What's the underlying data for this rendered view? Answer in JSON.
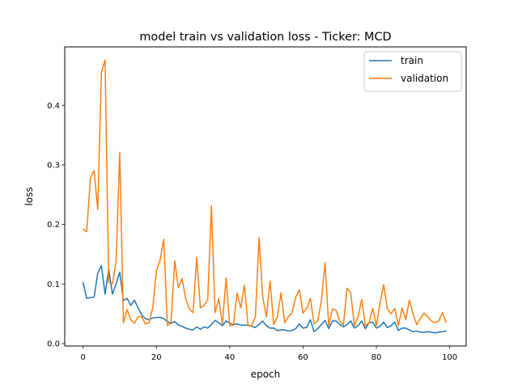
{
  "chart_data": {
    "type": "line",
    "title": "model train vs validation loss - Ticker: MCD",
    "xlabel": "epoch",
    "ylabel": "loss",
    "xlim": [
      -5,
      104.5
    ],
    "ylim": [
      -0.004,
      0.498
    ],
    "xticks": [
      0,
      20,
      40,
      60,
      80,
      100
    ],
    "yticks": [
      0.0,
      0.1,
      0.2,
      0.3,
      0.4
    ],
    "xtick_labels": [
      "0",
      "20",
      "40",
      "60",
      "80",
      "100"
    ],
    "ytick_labels": [
      "0.0",
      "0.1",
      "0.2",
      "0.3",
      "0.4"
    ],
    "grid": false,
    "legend_position": "top-right",
    "series": [
      {
        "name": "train",
        "color": "#1f77b4",
        "x": [
          0,
          1,
          2,
          3,
          4,
          5,
          6,
          7,
          8,
          9,
          10,
          11,
          12,
          13,
          14,
          15,
          16,
          17,
          18,
          19,
          20,
          21,
          22,
          23,
          24,
          25,
          26,
          27,
          28,
          29,
          30,
          31,
          32,
          33,
          34,
          35,
          36,
          37,
          38,
          39,
          40,
          41,
          42,
          43,
          44,
          45,
          46,
          47,
          48,
          49,
          50,
          51,
          52,
          53,
          54,
          55,
          56,
          57,
          58,
          59,
          60,
          61,
          62,
          63,
          64,
          65,
          66,
          67,
          68,
          69,
          70,
          71,
          72,
          73,
          74,
          75,
          76,
          77,
          78,
          79,
          80,
          81,
          82,
          83,
          84,
          85,
          86,
          87,
          88,
          89,
          90,
          91,
          92,
          93,
          94,
          95,
          96,
          97,
          98,
          99
        ],
        "values": [
          0.102,
          0.076,
          0.077,
          0.078,
          0.118,
          0.131,
          0.083,
          0.125,
          0.083,
          0.1,
          0.12,
          0.072,
          0.076,
          0.064,
          0.073,
          0.06,
          0.048,
          0.042,
          0.04,
          0.043,
          0.044,
          0.044,
          0.042,
          0.037,
          0.034,
          0.037,
          0.031,
          0.029,
          0.026,
          0.024,
          0.023,
          0.028,
          0.024,
          0.028,
          0.026,
          0.032,
          0.039,
          0.035,
          0.03,
          0.038,
          0.034,
          0.032,
          0.033,
          0.031,
          0.031,
          0.031,
          0.029,
          0.027,
          0.032,
          0.038,
          0.03,
          0.026,
          0.026,
          0.022,
          0.023,
          0.023,
          0.021,
          0.022,
          0.025,
          0.033,
          0.026,
          0.027,
          0.04,
          0.02,
          0.025,
          0.032,
          0.039,
          0.025,
          0.038,
          0.038,
          0.032,
          0.028,
          0.032,
          0.038,
          0.026,
          0.03,
          0.038,
          0.025,
          0.035,
          0.036,
          0.026,
          0.029,
          0.036,
          0.027,
          0.03,
          0.036,
          0.022,
          0.026,
          0.026,
          0.023,
          0.02,
          0.021,
          0.019,
          0.019,
          0.02,
          0.019,
          0.018,
          0.019,
          0.02,
          0.021
        ]
      },
      {
        "name": "validation",
        "color": "#ff7f0e",
        "x": [
          0,
          1,
          2,
          3,
          4,
          5,
          6,
          7,
          8,
          9,
          10,
          11,
          12,
          13,
          14,
          15,
          16,
          17,
          18,
          19,
          20,
          21,
          22,
          23,
          24,
          25,
          26,
          27,
          28,
          29,
          30,
          31,
          32,
          33,
          34,
          35,
          36,
          37,
          38,
          39,
          40,
          41,
          42,
          43,
          44,
          45,
          46,
          47,
          48,
          49,
          50,
          51,
          52,
          53,
          54,
          55,
          56,
          57,
          58,
          59,
          60,
          61,
          62,
          63,
          64,
          65,
          66,
          67,
          68,
          69,
          70,
          71,
          72,
          73,
          74,
          75,
          76,
          77,
          78,
          79,
          80,
          81,
          82,
          83,
          84,
          85,
          86,
          87,
          88,
          89,
          90,
          91,
          92,
          93,
          94,
          95,
          96,
          97,
          98,
          99
        ],
        "values": [
          0.192,
          0.188,
          0.278,
          0.29,
          0.225,
          0.455,
          0.476,
          0.103,
          0.1,
          0.138,
          0.321,
          0.035,
          0.057,
          0.04,
          0.034,
          0.045,
          0.045,
          0.033,
          0.035,
          0.06,
          0.122,
          0.14,
          0.175,
          0.03,
          0.036,
          0.139,
          0.094,
          0.109,
          0.075,
          0.058,
          0.052,
          0.145,
          0.06,
          0.064,
          0.074,
          0.231,
          0.052,
          0.075,
          0.033,
          0.11,
          0.03,
          0.031,
          0.085,
          0.06,
          0.098,
          0.03,
          0.03,
          0.045,
          0.178,
          0.078,
          0.045,
          0.105,
          0.032,
          0.045,
          0.085,
          0.035,
          0.045,
          0.052,
          0.078,
          0.09,
          0.051,
          0.059,
          0.076,
          0.033,
          0.038,
          0.072,
          0.136,
          0.03,
          0.058,
          0.056,
          0.038,
          0.031,
          0.093,
          0.085,
          0.03,
          0.045,
          0.074,
          0.03,
          0.035,
          0.059,
          0.03,
          0.068,
          0.099,
          0.058,
          0.05,
          0.059,
          0.03,
          0.06,
          0.04,
          0.073,
          0.05,
          0.032,
          0.042,
          0.051,
          0.045,
          0.038,
          0.035,
          0.038,
          0.052,
          0.036
        ]
      }
    ]
  }
}
